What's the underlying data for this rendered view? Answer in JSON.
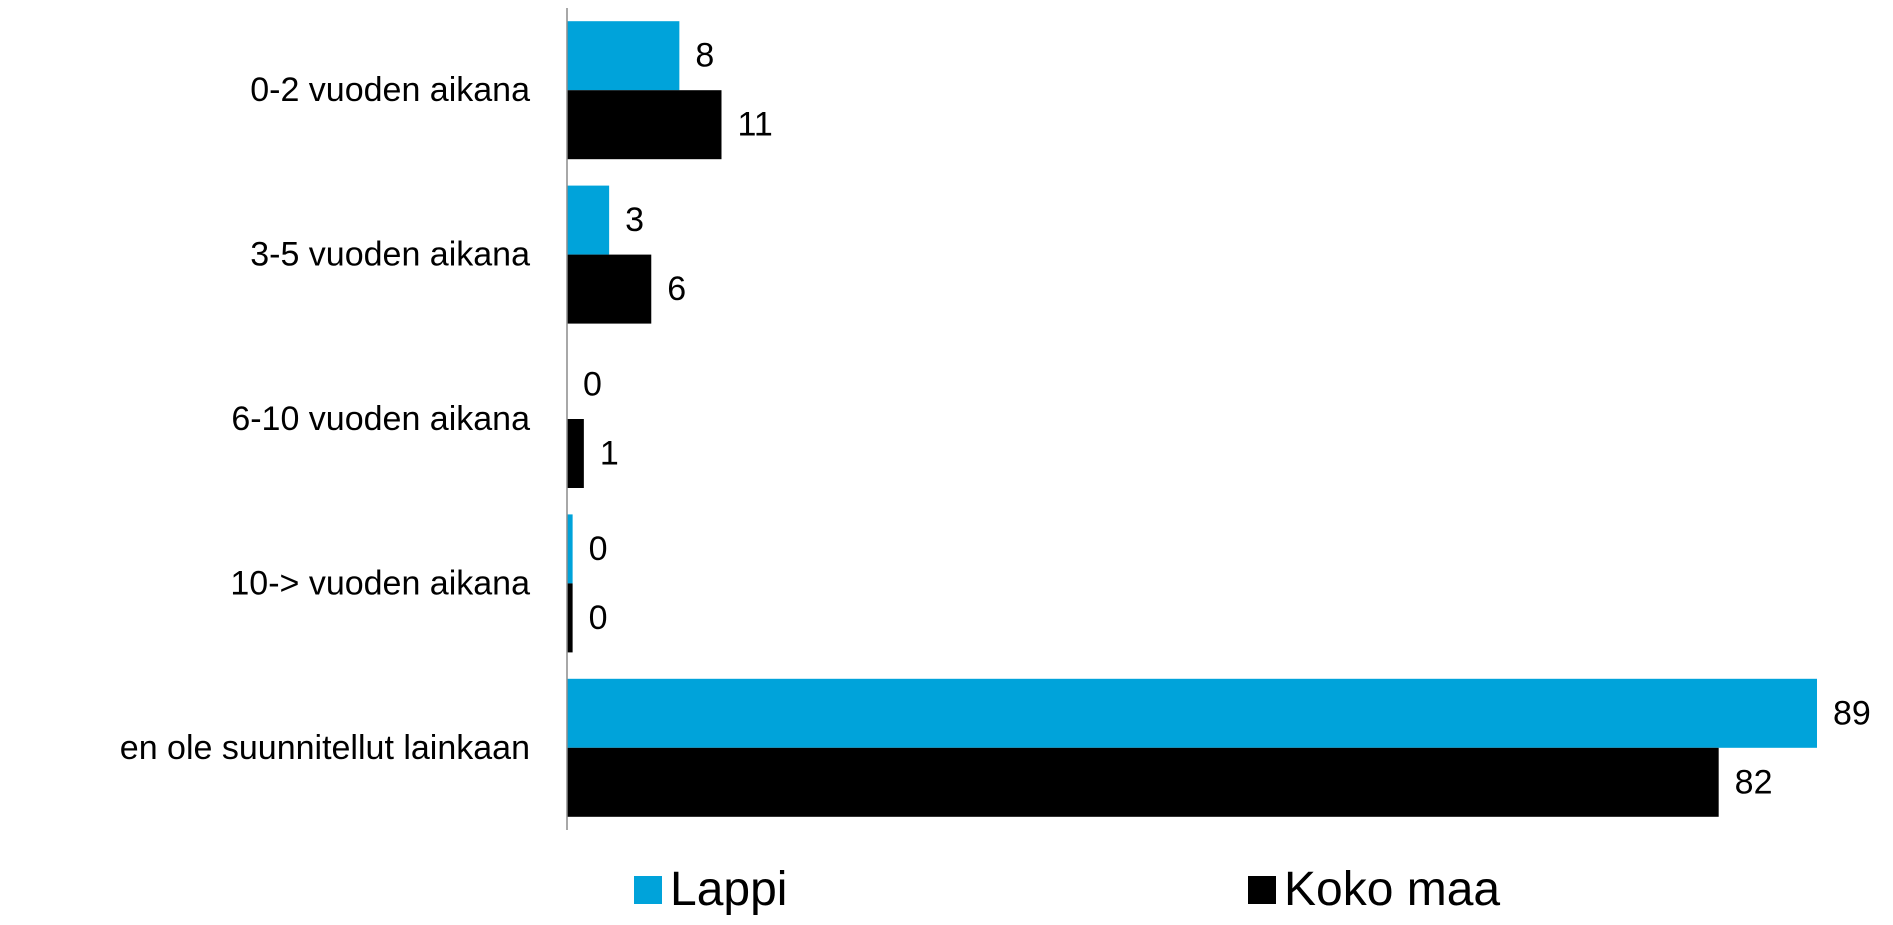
{
  "chart_data": {
    "type": "bar",
    "orientation": "horizontal",
    "categories": [
      "0-2 vuoden aikana",
      "3-5 vuoden aikana",
      "6-10 vuoden aikana",
      "10-> vuoden aikana",
      "en ole suunnitellut lainkaan"
    ],
    "series": [
      {
        "name": "Lappi",
        "color": "#00A3DA",
        "values": [
          8,
          3,
          0,
          0,
          89
        ],
        "bar_values": [
          8,
          3,
          0,
          0.4,
          89
        ]
      },
      {
        "name": "Koko maa",
        "color": "#000000",
        "values": [
          11,
          6,
          1,
          0,
          82
        ],
        "bar_values": [
          11,
          6,
          1.2,
          0.4,
          82
        ]
      }
    ],
    "xlim": [
      0,
      89
    ],
    "grid": false,
    "legend_position": "bottom",
    "title": "",
    "xlabel": "",
    "ylabel": ""
  }
}
